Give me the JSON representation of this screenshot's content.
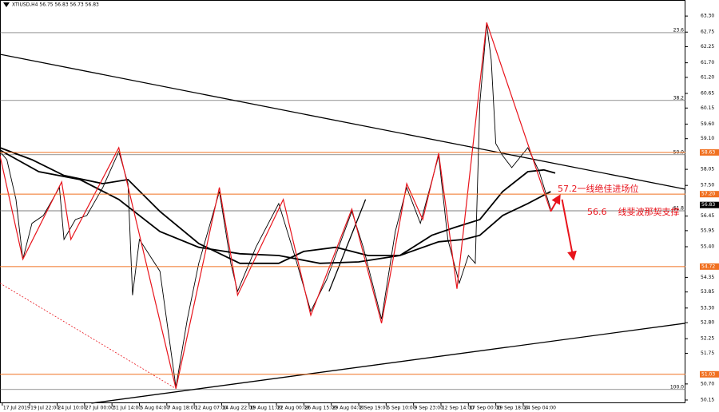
{
  "chart_data": {
    "type": "line",
    "title": "XTIUSD,H4 56.75 56.83 56.73 56.83",
    "xlim": [
      0,
      300
    ],
    "ylim": [
      50.04,
      63.85
    ],
    "yticks": [
      {
        "value": 63.3,
        "label": "63.30"
      },
      62.75,
      62.25,
      {
        "value": 61.7,
        "label": "61.70"
      },
      {
        "value": 61.2,
        "label": "61.20"
      },
      60.65,
      60.15,
      {
        "value": 59.6,
        "label": "59.60"
      },
      {
        "value": 59.1,
        "label": "59.10"
      },
      58.05,
      {
        "value": 57.5,
        "label": "57.50"
      },
      56.45,
      55.95,
      {
        "value": 55.4,
        "label": "55.40"
      },
      54.35,
      53.85,
      {
        "value": 53.3,
        "label": "53.30"
      },
      {
        "value": 52.8,
        "label": "52.80"
      },
      52.25,
      51.75,
      {
        "value": 50.7,
        "label": "50.70"
      },
      50.15
    ],
    "xticks": [
      {
        "value": 1,
        "label": "17 Jul 2019"
      },
      {
        "value": 13,
        "label": "19 Jul 22:00"
      },
      {
        "value": 25,
        "label": "24 Jul 10:00"
      },
      {
        "value": 37,
        "label": "27 Jul 00:00"
      },
      {
        "value": 49,
        "label": "31 Jul 14:00"
      },
      {
        "value": 61,
        "label": "5 Aug 04:00"
      },
      {
        "value": 73,
        "label": "7 Aug 18:00"
      },
      {
        "value": 85,
        "label": "12 Aug 07:00"
      },
      {
        "value": 97,
        "label": "14 Aug 22:00"
      },
      {
        "value": 109,
        "label": "19 Aug 11:00"
      },
      {
        "value": 121,
        "label": "22 Aug 00:00"
      },
      {
        "value": 133,
        "label": "26 Aug 15:00"
      },
      {
        "value": 145,
        "label": "29 Aug 04:00"
      },
      {
        "value": 157,
        "label": "2 Sep 19:00"
      },
      {
        "value": 169,
        "label": "5 Sep 10:00"
      },
      {
        "value": 181,
        "label": "9 Sep 23:00"
      },
      {
        "value": 193,
        "label": "12 Sep 14:00"
      },
      {
        "value": 205,
        "label": "17 Sep 00:00"
      },
      {
        "value": 217,
        "label": "19 Sep 18:00"
      },
      {
        "value": 229,
        "label": "24 Sep 04:00"
      }
    ],
    "price": {
      "color": "#000000",
      "x": [
        0,
        3,
        7,
        10,
        14,
        19,
        26,
        28,
        33,
        38,
        45,
        52,
        56,
        58,
        61,
        70,
        77,
        82,
        87,
        96,
        101,
        104,
        112,
        122,
        129,
        136,
        143,
        154,
        159,
        167,
        173,
        178,
        184,
        192,
        196,
        201,
        205,
        208,
        210,
        213,
        215,
        217,
        220,
        224,
        231,
        236,
        241
      ],
      "values": [
        58.66,
        58.38,
        57.02,
        54.97,
        56.2,
        56.47,
        57.43,
        55.65,
        56.33,
        56.47,
        57.43,
        58.66,
        57.56,
        53.74,
        55.65,
        54.56,
        50.59,
        52.92,
        54.83,
        57.29,
        54.83,
        53.87,
        55.38,
        56.88,
        55.1,
        53.19,
        54.28,
        56.61,
        55.38,
        52.92,
        55.92,
        57.43,
        56.2,
        58.52,
        55.65,
        54.15,
        55.1,
        54.83,
        60.3,
        63.03,
        61.8,
        58.93,
        58.52,
        58.11,
        58.79,
        57.97,
        56.69
      ]
    },
    "moving_averages": [
      {
        "color": "#000000",
        "x": [
          0,
          14,
          28,
          45,
          56,
          70,
          87,
          105,
          122,
          133,
          147,
          161,
          175,
          189,
          199,
          210,
          220,
          231,
          238,
          243
        ],
        "values": [
          58.79,
          58.38,
          57.84,
          57.56,
          57.7,
          56.61,
          55.51,
          54.83,
          54.83,
          55.24,
          55.38,
          55.1,
          55.1,
          55.79,
          56.06,
          56.33,
          57.29,
          57.97,
          58.03,
          57.92
        ]
      },
      {
        "color": "#000000",
        "x": [
          0,
          17,
          35,
          52,
          70,
          87,
          105,
          122,
          140,
          157,
          175,
          192,
          203,
          210,
          220,
          231,
          241
        ],
        "values": [
          58.71,
          57.97,
          57.7,
          57.02,
          55.92,
          55.38,
          55.16,
          55.1,
          54.83,
          54.88,
          55.1,
          55.57,
          55.65,
          55.79,
          56.47,
          56.88,
          57.29
        ]
      }
    ],
    "zigzag": {
      "color": "#e8141c",
      "x": [
        0,
        10,
        27,
        31,
        52,
        77,
        96,
        104,
        124,
        136,
        154,
        167,
        178,
        185,
        192,
        200,
        213,
        241
      ],
      "values": [
        58.52,
        54.97,
        57.62,
        55.65,
        58.79,
        50.54,
        57.43,
        53.74,
        57.02,
        53.05,
        56.69,
        52.78,
        57.56,
        56.33,
        58.6,
        53.96,
        63.08,
        56.61
      ]
    },
    "levels": [
      {
        "value": 58.63,
        "color": "#f07020"
      },
      {
        "value": 57.2,
        "label": "57.20",
        "color": "#f07020"
      },
      {
        "value": 54.72,
        "color": "#f07020"
      },
      {
        "value": 51.03,
        "color": "#f07020"
      }
    ],
    "fib_levels": [
      {
        "value": 62.73,
        "label": "23.6"
      },
      {
        "value": 60.41,
        "label": "38.2"
      },
      {
        "value": 58.55,
        "label": "50.0"
      },
      {
        "value": 56.63,
        "label": "61.8"
      },
      {
        "value": 50.51,
        "label": "100.0"
      }
    ],
    "trendlines": [
      {
        "x": [
          0,
          300
        ],
        "values": [
          61.99,
          57.37
        ],
        "color": "#000000",
        "dashed": false
      },
      {
        "x": [
          40,
          300
        ],
        "values": [
          50.04,
          52.78
        ],
        "color": "#000000",
        "dashed": false
      },
      {
        "x": [
          0,
          77
        ],
        "values": [
          54.15,
          50.54
        ],
        "color": "#e8141c",
        "dashed": true
      },
      {
        "x": [
          144,
          160
        ],
        "values": [
          53.87,
          57.02
        ],
        "color": "#000000",
        "dashed": false
      }
    ],
    "arrows": [
      {
        "x": [
          241,
          245
        ],
        "values": [
          56.61,
          57.15
        ],
        "color": "#e8141c"
      },
      {
        "x": [
          246,
          251
        ],
        "values": [
          57.02,
          54.97
        ],
        "color": "#e8141c"
      }
    ],
    "current_price": 56.83,
    "annotations": [
      "57.2一线绝佳进场位",
      "56.6    线斐波那契支撑"
    ]
  }
}
